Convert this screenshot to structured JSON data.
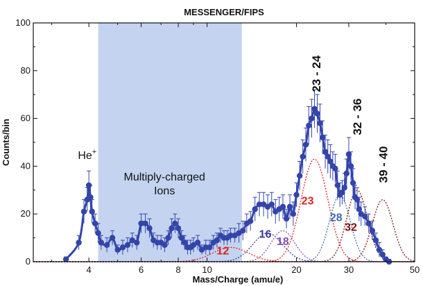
{
  "chart_data": {
    "type": "line",
    "title": "MESSENGER/FIPS",
    "xlabel": "Mass/Charge (amu/e)",
    "ylabel": "Counts/bin",
    "x_scale": "log",
    "xlim": [
      2.6,
      50
    ],
    "ylim": [
      0,
      100
    ],
    "x_ticks": [
      4,
      6,
      8,
      10,
      20,
      30,
      50
    ],
    "x_tick_labels": [
      "4",
      "6",
      "8",
      "10",
      "20",
      "30",
      "50"
    ],
    "y_ticks": [
      0,
      20,
      40,
      60,
      80,
      100
    ],
    "y_tick_labels": [
      "0",
      "20",
      "40",
      "60",
      "80",
      "100"
    ],
    "grid": false,
    "shaded_region": {
      "x": [
        4.3,
        13.1
      ],
      "label": "Multiply-charged\nIons",
      "color": "#c4d4f0"
    },
    "colors": {
      "data": "#3344aa",
      "red": "#e02020",
      "blue_dark": "#3a3a9a",
      "purple": "#8050b0",
      "teal": "#3a6ab0",
      "maroon": "#7a1010"
    },
    "series": [
      {
        "name": "",
        "style": "points-with-errorbars",
        "x": [
          3.35,
          3.7,
          3.85,
          3.95,
          4.0,
          4.05,
          4.1,
          4.2,
          4.3,
          4.4,
          4.6,
          4.8,
          5.0,
          5.2,
          5.4,
          5.6,
          5.8,
          6.0,
          6.2,
          6.4,
          6.6,
          6.8,
          7.0,
          7.2,
          7.4,
          7.6,
          7.8,
          8.0,
          8.2,
          8.4,
          8.6,
          8.8,
          9.0,
          9.3,
          9.6,
          9.9,
          10.2,
          10.5,
          10.8,
          11.1,
          11.4,
          11.7,
          12.0,
          12.4,
          12.8,
          13.2,
          13.6,
          14.0,
          14.5,
          15.0,
          15.5,
          16.0,
          16.5,
          17.0,
          17.5,
          18.0,
          18.5,
          19.0,
          19.5,
          20.0,
          20.5,
          21.0,
          21.5,
          22.0,
          22.5,
          23.0,
          23.5,
          24.0,
          24.5,
          25.0,
          25.5,
          26.0,
          26.5,
          27.0,
          27.5,
          28.0,
          28.5,
          29.0,
          29.5,
          30.0,
          30.5,
          31.0,
          31.5,
          32.0,
          32.5,
          33.0,
          34.0,
          35.0,
          36.0,
          37.0,
          38.0,
          39.0,
          40.0,
          41.0
        ],
        "y": [
          1,
          8,
          21,
          26,
          32,
          27,
          21,
          16,
          12,
          8,
          7,
          10,
          5,
          6,
          7,
          9,
          8,
          16,
          16,
          14,
          9,
          8,
          8,
          7,
          10,
          14,
          16,
          14,
          10,
          8,
          6,
          6,
          7,
          8,
          5,
          6,
          6,
          8,
          9,
          11,
          10,
          10,
          11,
          11,
          12,
          13,
          16,
          17,
          22,
          24,
          24,
          23,
          24,
          21,
          22,
          23,
          18,
          23,
          20,
          28,
          36,
          44,
          49,
          57,
          60,
          64,
          62,
          58,
          52,
          46,
          44,
          42,
          40,
          39,
          32,
          28,
          29,
          31,
          37,
          45,
          40,
          33,
          27,
          26,
          22,
          20,
          19,
          16,
          13,
          9,
          5,
          3,
          1,
          0
        ],
        "yerr": [
          1,
          3,
          5,
          5,
          6,
          5,
          5,
          4,
          4,
          3,
          3,
          3,
          2,
          3,
          3,
          3,
          3,
          4,
          4,
          4,
          3,
          3,
          3,
          3,
          3,
          4,
          4,
          4,
          3,
          3,
          3,
          3,
          3,
          3,
          2,
          3,
          3,
          3,
          3,
          3,
          3,
          3,
          3,
          3,
          4,
          4,
          4,
          4,
          5,
          5,
          5,
          5,
          5,
          5,
          5,
          5,
          4,
          5,
          5,
          5,
          6,
          7,
          7,
          8,
          8,
          8,
          8,
          8,
          7,
          7,
          7,
          7,
          6,
          6,
          6,
          5,
          5,
          6,
          6,
          7,
          6,
          6,
          5,
          5,
          5,
          5,
          4,
          4,
          4,
          3,
          3,
          2,
          1,
          1
        ]
      },
      {
        "name": "12",
        "style": "dotted-gaussian",
        "center": 12.0,
        "amplitude": 6,
        "width": 0.06
      },
      {
        "name": "16",
        "style": "dotted-gaussian",
        "center": 16.0,
        "amplitude": 12,
        "width": 0.05
      },
      {
        "name": "18",
        "style": "dotted-gaussian",
        "center": 18.0,
        "amplitude": 13,
        "width": 0.04
      },
      {
        "name": "23",
        "style": "dotted-gaussian",
        "center": 23.0,
        "amplitude": 43,
        "width": 0.045
      },
      {
        "name": "28",
        "style": "dotted-gaussian",
        "center": 28.0,
        "amplitude": 28,
        "width": 0.035
      },
      {
        "name": "32",
        "style": "dotted-gaussian",
        "center": 32.0,
        "amplitude": 30,
        "width": 0.035
      },
      {
        "name": "39-40",
        "style": "dotted-gaussian",
        "center": 39.0,
        "amplitude": 26,
        "width": 0.035
      }
    ],
    "annotations": [
      {
        "text": "He",
        "sup": "+",
        "x": 3.95,
        "y": 43,
        "color": "#111111",
        "rotate": 0
      },
      {
        "text": "23 - 24",
        "x": 23.3,
        "y": 71,
        "color": "#111111",
        "rotate": -90
      },
      {
        "text": "32 - 36",
        "x": 32.0,
        "y": 53,
        "color": "#111111",
        "rotate": -90
      },
      {
        "text": "39 - 40",
        "x": 39.2,
        "y": 33,
        "color": "#111111",
        "rotate": -90
      },
      {
        "text": "12",
        "x": 11.3,
        "y": 3,
        "color": "#e02020",
        "rotate": 0
      },
      {
        "text": "16",
        "x": 15.7,
        "y": 10,
        "color": "#3a3a9a",
        "rotate": 0
      },
      {
        "text": "18",
        "x": 18.0,
        "y": 7,
        "color": "#8050b0",
        "rotate": 0
      },
      {
        "text": "23",
        "x": 21.8,
        "y": 24,
        "color": "#e02020",
        "rotate": 0
      },
      {
        "text": "28",
        "x": 27.2,
        "y": 17,
        "color": "#3a6ab0",
        "rotate": 0
      },
      {
        "text": "32",
        "x": 30.5,
        "y": 13,
        "color": "#7a1010",
        "rotate": 0
      }
    ]
  }
}
